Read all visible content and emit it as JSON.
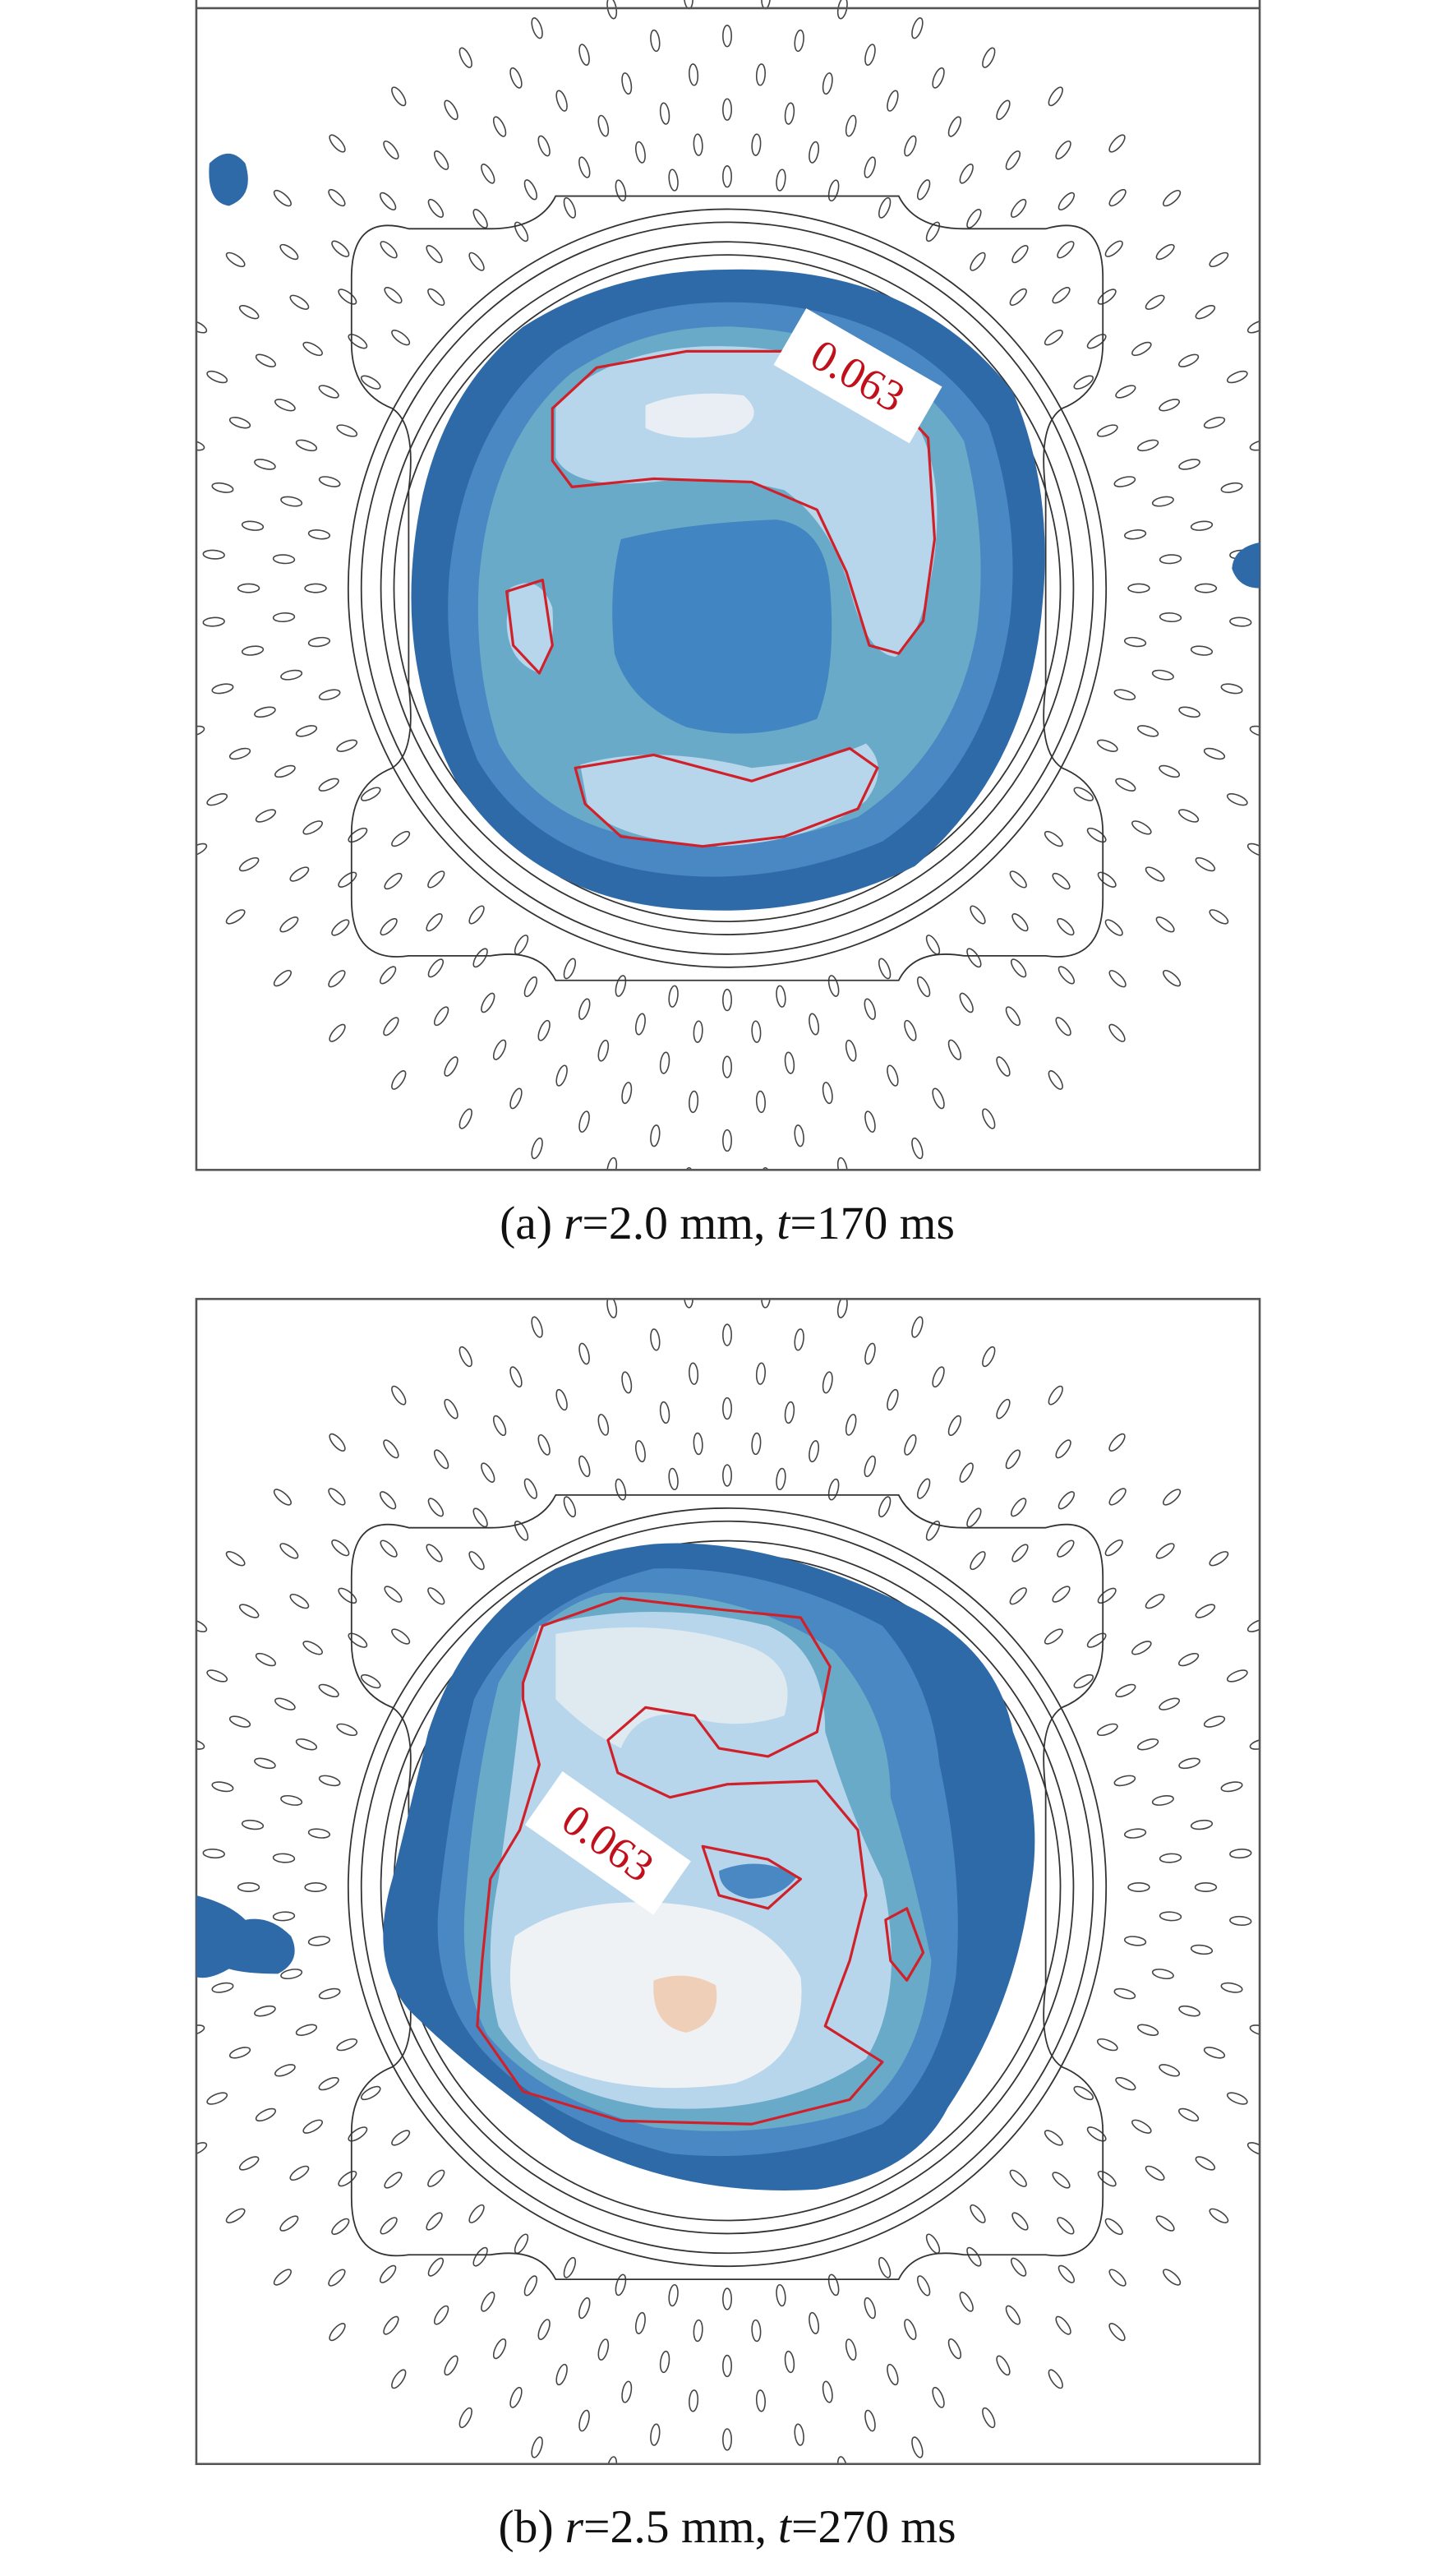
{
  "chart_data": [
    {
      "type": "contour",
      "caption": [
        "(a)",
        "r",
        "=2.0 mm,",
        "t",
        "=170 ms"
      ],
      "contour_label": 0.063
    },
    {
      "type": "contour",
      "caption": [
        "(b)",
        "r",
        "=2.5 mm,",
        "t",
        "=270 ms"
      ],
      "contour_label": 0.063
    }
  ]
}
